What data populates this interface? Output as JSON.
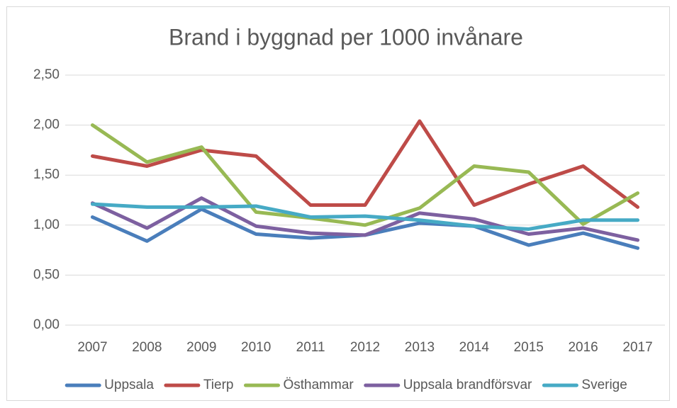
{
  "chart_data": {
    "type": "line",
    "title": "Brand i byggnad per 1000 invånare",
    "categories": [
      "2007",
      "2008",
      "2009",
      "2010",
      "2011",
      "2012",
      "2013",
      "2014",
      "2015",
      "2016",
      "2017"
    ],
    "series": [
      {
        "name": "Uppsala",
        "color": "#4a7ebb",
        "values": [
          1.08,
          0.84,
          1.16,
          0.91,
          0.87,
          0.9,
          1.02,
          0.99,
          0.8,
          0.92,
          0.77
        ]
      },
      {
        "name": "Tierp",
        "color": "#be4b48",
        "values": [
          1.69,
          1.59,
          1.75,
          1.69,
          1.2,
          1.2,
          2.04,
          1.2,
          1.41,
          1.59,
          1.18
        ]
      },
      {
        "name": "Östhammar",
        "color": "#98b954",
        "values": [
          2.0,
          1.63,
          1.78,
          1.13,
          1.07,
          1.0,
          1.17,
          1.59,
          1.53,
          1.01,
          1.32
        ]
      },
      {
        "name": "Uppsala brandförsvar",
        "color": "#7d60a0",
        "values": [
          1.22,
          0.97,
          1.27,
          0.99,
          0.92,
          0.9,
          1.12,
          1.06,
          0.91,
          0.97,
          0.85
        ]
      },
      {
        "name": "Sverige",
        "color": "#46aac5",
        "values": [
          1.21,
          1.18,
          1.18,
          1.19,
          1.08,
          1.09,
          1.05,
          0.99,
          0.96,
          1.05,
          1.05
        ]
      }
    ],
    "ylim": [
      0,
      2.5
    ],
    "yticks": [
      {
        "value": 0,
        "label": "0,00"
      },
      {
        "value": 0.5,
        "label": "0,50"
      },
      {
        "value": 1,
        "label": "1,00"
      },
      {
        "value": 1.5,
        "label": "1,50"
      },
      {
        "value": 2,
        "label": "2,00"
      },
      {
        "value": 2.5,
        "label": "2,50"
      }
    ],
    "grid": true,
    "legend": "bottom"
  }
}
